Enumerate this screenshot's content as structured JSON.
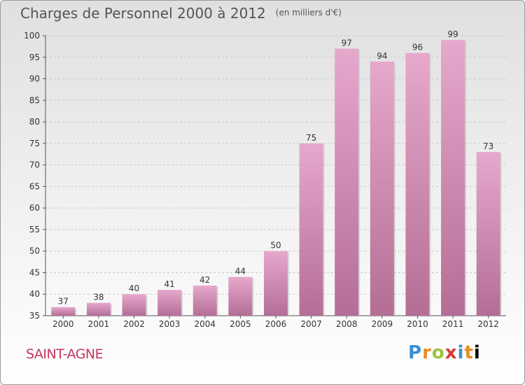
{
  "title": "Charges de Personnel 2000 à 2012",
  "unit_note": "(en milliers d'€)",
  "commune": "SAINT-AGNE",
  "brand": [
    "P",
    "r",
    "o",
    "x",
    "i",
    "t",
    "i"
  ],
  "colors": {
    "bar": "#d98fb8",
    "bar_top": "#e6a8cc",
    "bar_bottom": "#b46e96",
    "title": "#555555",
    "commune": "#c4375e"
  },
  "chart_data": {
    "type": "bar",
    "title": "Charges de Personnel 2000 à 2012",
    "subtitle": "(en milliers d'€)",
    "categories": [
      "2000",
      "2001",
      "2002",
      "2003",
      "2004",
      "2005",
      "2006",
      "2007",
      "2008",
      "2009",
      "2010",
      "2011",
      "2012"
    ],
    "values": [
      37,
      38,
      40,
      41,
      42,
      44,
      50,
      75,
      97,
      94,
      96,
      99,
      73
    ],
    "ylim": [
      35,
      100
    ],
    "yticks": [
      35,
      40,
      45,
      50,
      55,
      60,
      65,
      70,
      75,
      80,
      85,
      90,
      95,
      100
    ],
    "grid": true,
    "xlabel": "",
    "ylabel": ""
  }
}
